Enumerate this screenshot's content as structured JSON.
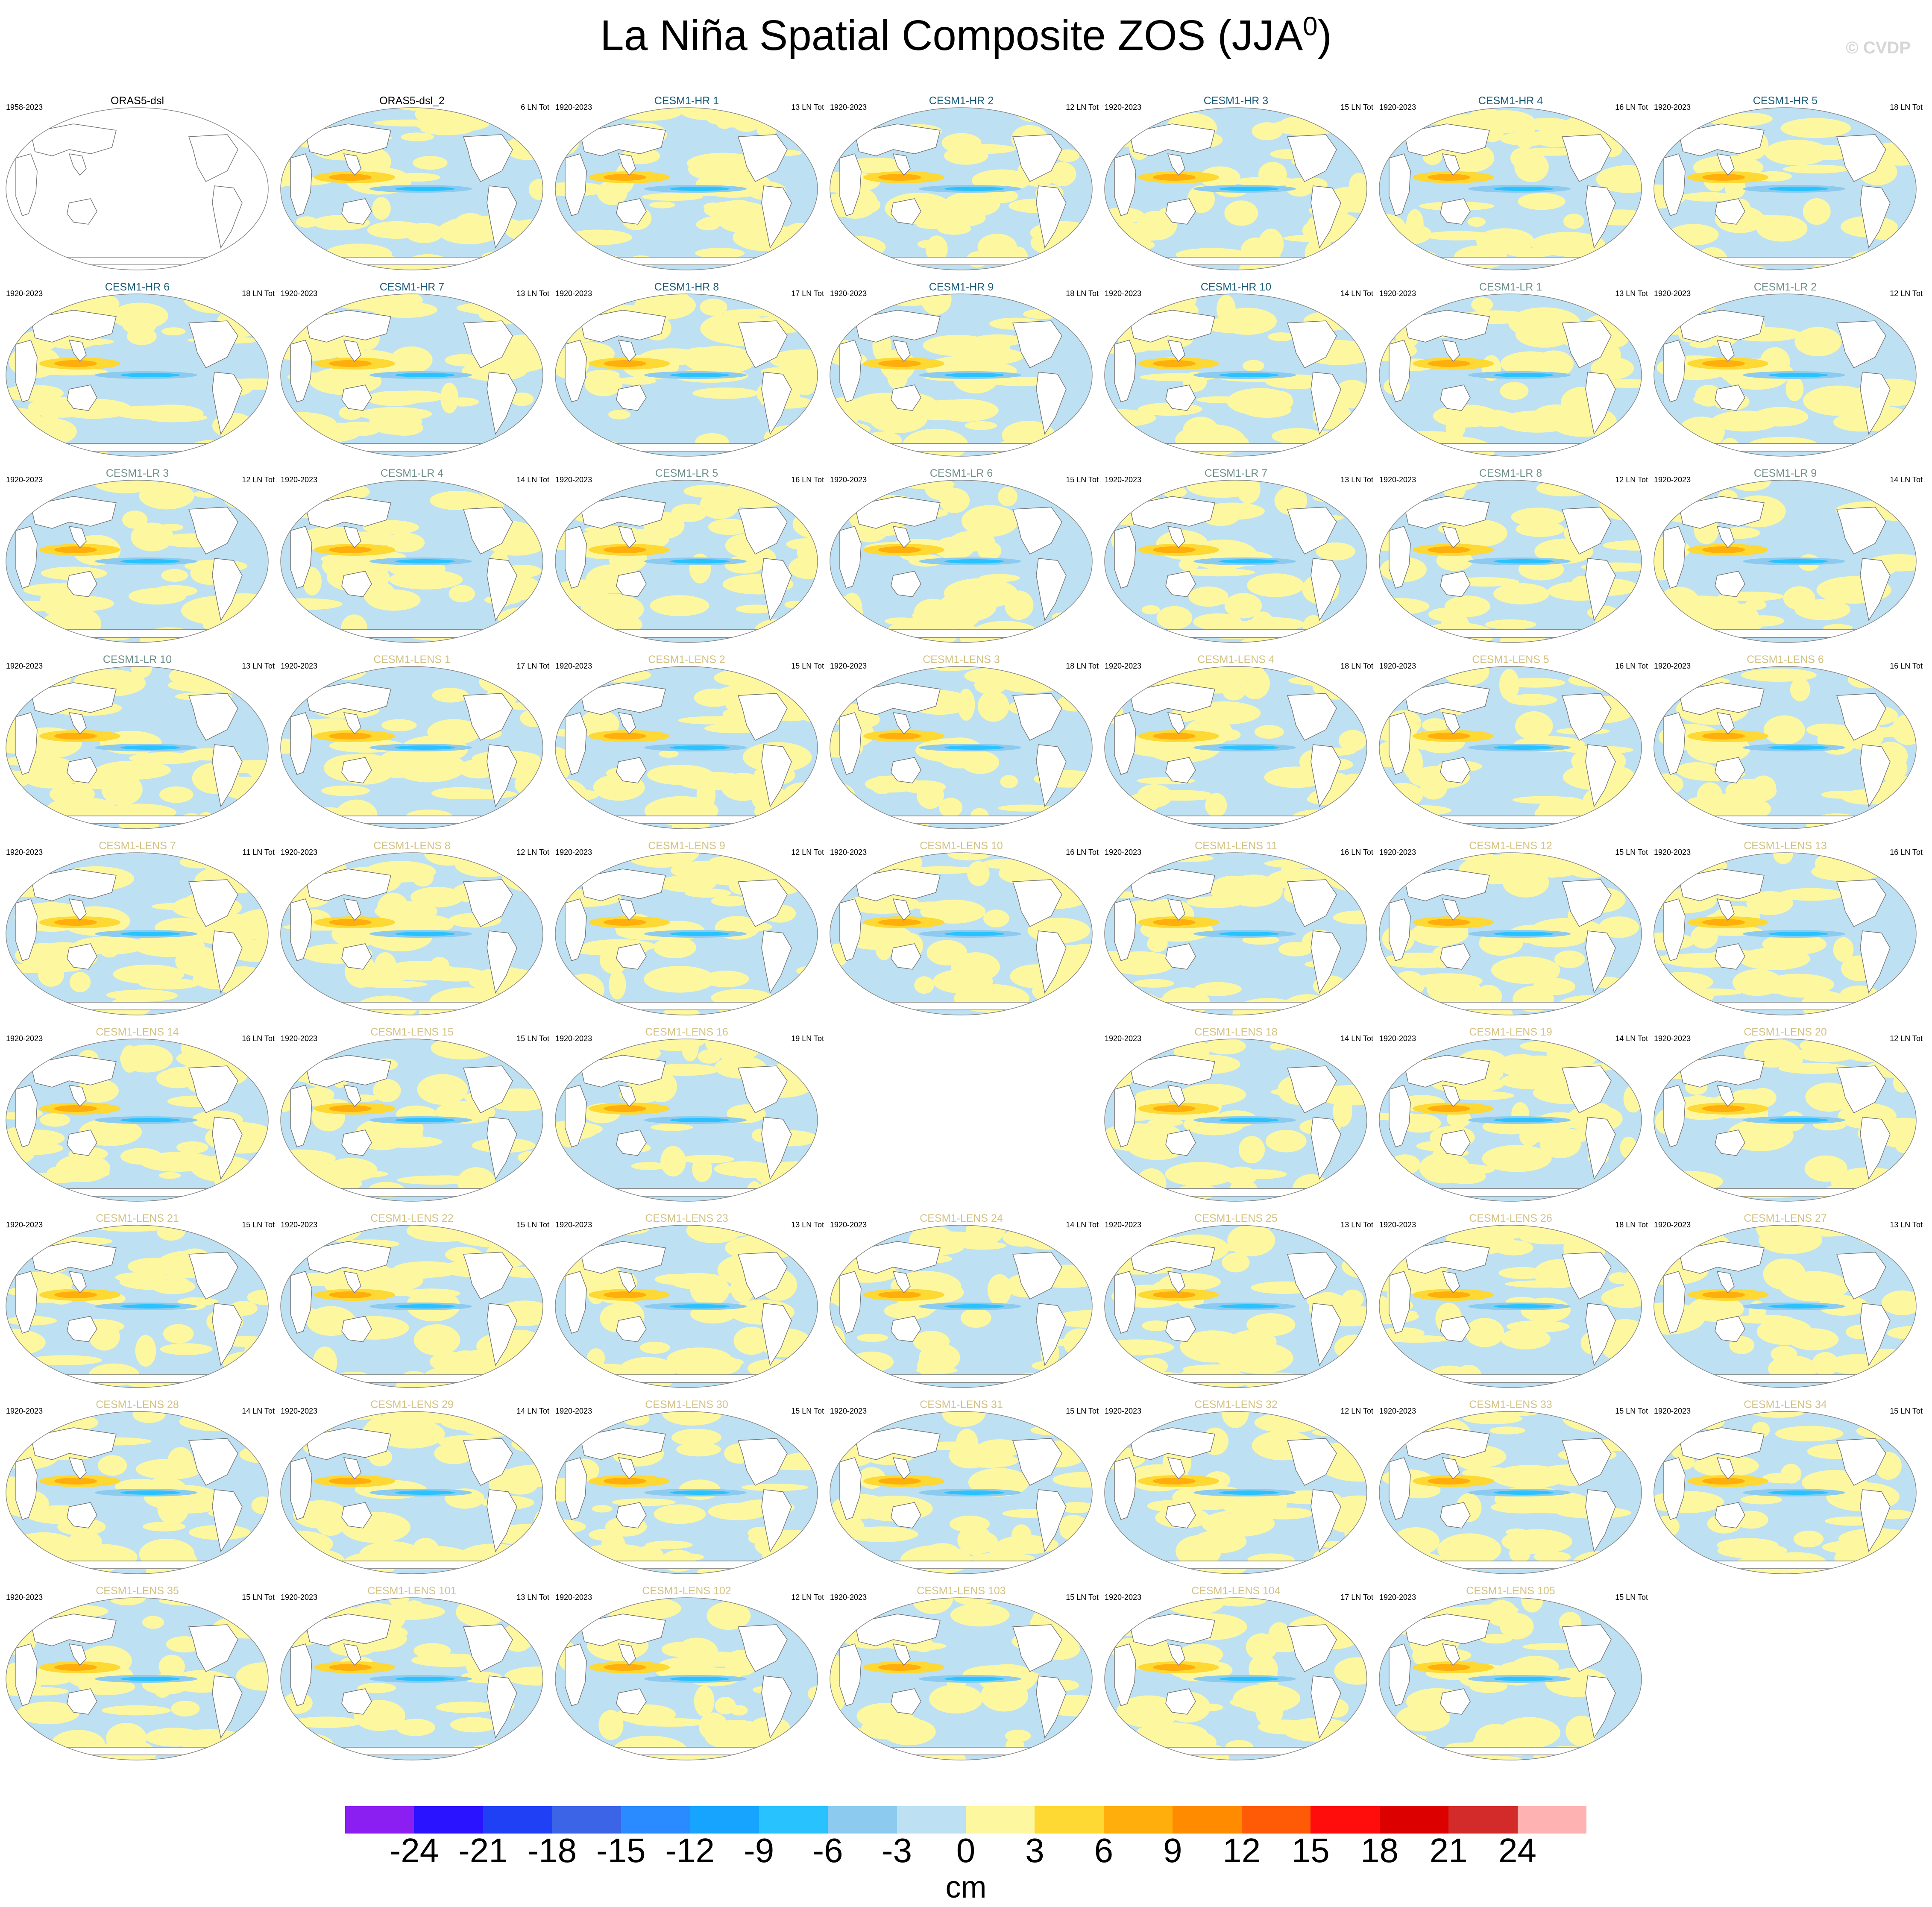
{
  "title": "La Niña Spatial Composite ZOS (JJA",
  "title_sup": "0",
  "title_close": ")",
  "watermark": "© CVDP",
  "colors": {
    "ocean_blue": "#bde0f3",
    "ocean_yellow": "#fdf7a0",
    "land": "#ffffff",
    "coast": "#777777",
    "name_obs": "#000000",
    "name_hr": "#1a5c7a",
    "name_lr": "#6f8f8a",
    "name_lens": "#d4c283"
  },
  "panels": [
    {
      "name": "ORAS5-dsl",
      "years": "1958-2023",
      "tot": "",
      "group": "obs",
      "blank": true
    },
    {
      "name": "ORAS5-dsl_2",
      "years": "",
      "tot": "6 LN Tot",
      "group": "obs"
    },
    {
      "name": "CESM1-HR 1",
      "years": "1920-2023",
      "tot": "13 LN Tot",
      "group": "hr"
    },
    {
      "name": "CESM1-HR 2",
      "years": "1920-2023",
      "tot": "12 LN Tot",
      "group": "hr"
    },
    {
      "name": "CESM1-HR 3",
      "years": "1920-2023",
      "tot": "15 LN Tot",
      "group": "hr"
    },
    {
      "name": "CESM1-HR 4",
      "years": "1920-2023",
      "tot": "16 LN Tot",
      "group": "hr"
    },
    {
      "name": "CESM1-HR 5",
      "years": "1920-2023",
      "tot": "18 LN Tot",
      "group": "hr"
    },
    {
      "name": "CESM1-HR 6",
      "years": "1920-2023",
      "tot": "18 LN Tot",
      "group": "hr"
    },
    {
      "name": "CESM1-HR 7",
      "years": "1920-2023",
      "tot": "13 LN Tot",
      "group": "hr"
    },
    {
      "name": "CESM1-HR 8",
      "years": "1920-2023",
      "tot": "17 LN Tot",
      "group": "hr"
    },
    {
      "name": "CESM1-HR 9",
      "years": "1920-2023",
      "tot": "18 LN Tot",
      "group": "hr"
    },
    {
      "name": "CESM1-HR 10",
      "years": "1920-2023",
      "tot": "14 LN Tot",
      "group": "hr"
    },
    {
      "name": "CESM1-LR 1",
      "years": "1920-2023",
      "tot": "13 LN Tot",
      "group": "lr"
    },
    {
      "name": "CESM1-LR 2",
      "years": "1920-2023",
      "tot": "12 LN Tot",
      "group": "lr"
    },
    {
      "name": "CESM1-LR 3",
      "years": "1920-2023",
      "tot": "12 LN Tot",
      "group": "lr"
    },
    {
      "name": "CESM1-LR 4",
      "years": "1920-2023",
      "tot": "14 LN Tot",
      "group": "lr"
    },
    {
      "name": "CESM1-LR 5",
      "years": "1920-2023",
      "tot": "16 LN Tot",
      "group": "lr"
    },
    {
      "name": "CESM1-LR 6",
      "years": "1920-2023",
      "tot": "15 LN Tot",
      "group": "lr"
    },
    {
      "name": "CESM1-LR 7",
      "years": "1920-2023",
      "tot": "13 LN Tot",
      "group": "lr"
    },
    {
      "name": "CESM1-LR 8",
      "years": "1920-2023",
      "tot": "12 LN Tot",
      "group": "lr"
    },
    {
      "name": "CESM1-LR 9",
      "years": "1920-2023",
      "tot": "14 LN Tot",
      "group": "lr"
    },
    {
      "name": "CESM1-LR 10",
      "years": "1920-2023",
      "tot": "13 LN Tot",
      "group": "lr"
    },
    {
      "name": "CESM1-LENS 1",
      "years": "1920-2023",
      "tot": "17 LN Tot",
      "group": "lens"
    },
    {
      "name": "CESM1-LENS 2",
      "years": "1920-2023",
      "tot": "15 LN Tot",
      "group": "lens"
    },
    {
      "name": "CESM1-LENS 3",
      "years": "1920-2023",
      "tot": "18 LN Tot",
      "group": "lens"
    },
    {
      "name": "CESM1-LENS 4",
      "years": "1920-2023",
      "tot": "18 LN Tot",
      "group": "lens"
    },
    {
      "name": "CESM1-LENS 5",
      "years": "1920-2023",
      "tot": "16 LN Tot",
      "group": "lens"
    },
    {
      "name": "CESM1-LENS 6",
      "years": "1920-2023",
      "tot": "16 LN Tot",
      "group": "lens"
    },
    {
      "name": "CESM1-LENS 7",
      "years": "1920-2023",
      "tot": "11 LN Tot",
      "group": "lens"
    },
    {
      "name": "CESM1-LENS 8",
      "years": "1920-2023",
      "tot": "12 LN Tot",
      "group": "lens"
    },
    {
      "name": "CESM1-LENS 9",
      "years": "1920-2023",
      "tot": "12 LN Tot",
      "group": "lens"
    },
    {
      "name": "CESM1-LENS 10",
      "years": "1920-2023",
      "tot": "16 LN Tot",
      "group": "lens"
    },
    {
      "name": "CESM1-LENS 11",
      "years": "1920-2023",
      "tot": "16 LN Tot",
      "group": "lens"
    },
    {
      "name": "CESM1-LENS 12",
      "years": "1920-2023",
      "tot": "15 LN Tot",
      "group": "lens"
    },
    {
      "name": "CESM1-LENS 13",
      "years": "1920-2023",
      "tot": "16 LN Tot",
      "group": "lens"
    },
    {
      "name": "CESM1-LENS 14",
      "years": "1920-2023",
      "tot": "16 LN Tot",
      "group": "lens"
    },
    {
      "name": "CESM1-LENS 15",
      "years": "1920-2023",
      "tot": "15 LN Tot",
      "group": "lens"
    },
    {
      "name": "CESM1-LENS 16",
      "years": "1920-2023",
      "tot": "19 LN Tot",
      "group": "lens"
    },
    {
      "name": "",
      "years": "",
      "tot": "",
      "group": "empty",
      "empty": true
    },
    {
      "name": "CESM1-LENS 18",
      "years": "1920-2023",
      "tot": "14 LN Tot",
      "group": "lens"
    },
    {
      "name": "CESM1-LENS 19",
      "years": "1920-2023",
      "tot": "14 LN Tot",
      "group": "lens"
    },
    {
      "name": "CESM1-LENS 20",
      "years": "1920-2023",
      "tot": "12 LN Tot",
      "group": "lens"
    },
    {
      "name": "CESM1-LENS 21",
      "years": "1920-2023",
      "tot": "15 LN Tot",
      "group": "lens"
    },
    {
      "name": "CESM1-LENS 22",
      "years": "1920-2023",
      "tot": "15 LN Tot",
      "group": "lens"
    },
    {
      "name": "CESM1-LENS 23",
      "years": "1920-2023",
      "tot": "13 LN Tot",
      "group": "lens"
    },
    {
      "name": "CESM1-LENS 24",
      "years": "1920-2023",
      "tot": "14 LN Tot",
      "group": "lens"
    },
    {
      "name": "CESM1-LENS 25",
      "years": "1920-2023",
      "tot": "13 LN Tot",
      "group": "lens"
    },
    {
      "name": "CESM1-LENS 26",
      "years": "1920-2023",
      "tot": "18 LN Tot",
      "group": "lens"
    },
    {
      "name": "CESM1-LENS 27",
      "years": "1920-2023",
      "tot": "13 LN Tot",
      "group": "lens"
    },
    {
      "name": "CESM1-LENS 28",
      "years": "1920-2023",
      "tot": "14 LN Tot",
      "group": "lens"
    },
    {
      "name": "CESM1-LENS 29",
      "years": "1920-2023",
      "tot": "14 LN Tot",
      "group": "lens"
    },
    {
      "name": "CESM1-LENS 30",
      "years": "1920-2023",
      "tot": "15 LN Tot",
      "group": "lens"
    },
    {
      "name": "CESM1-LENS 31",
      "years": "1920-2023",
      "tot": "15 LN Tot",
      "group": "lens"
    },
    {
      "name": "CESM1-LENS 32",
      "years": "1920-2023",
      "tot": "12 LN Tot",
      "group": "lens"
    },
    {
      "name": "CESM1-LENS 33",
      "years": "1920-2023",
      "tot": "15 LN Tot",
      "group": "lens"
    },
    {
      "name": "CESM1-LENS 34",
      "years": "1920-2023",
      "tot": "15 LN Tot",
      "group": "lens"
    },
    {
      "name": "CESM1-LENS 35",
      "years": "1920-2023",
      "tot": "15 LN Tot",
      "group": "lens"
    },
    {
      "name": "CESM1-LENS 101",
      "years": "1920-2023",
      "tot": "13 LN Tot",
      "group": "lens"
    },
    {
      "name": "CESM1-LENS 102",
      "years": "1920-2023",
      "tot": "12 LN Tot",
      "group": "lens"
    },
    {
      "name": "CESM1-LENS 103",
      "years": "1920-2023",
      "tot": "15 LN Tot",
      "group": "lens"
    },
    {
      "name": "CESM1-LENS 104",
      "years": "1920-2023",
      "tot": "17 LN Tot",
      "group": "lens"
    },
    {
      "name": "CESM1-LENS 105",
      "years": "1920-2023",
      "tot": "15 LN Tot",
      "group": "lens"
    }
  ],
  "colorbar": {
    "colors": [
      "#8b1ef0",
      "#2a13ff",
      "#2040f5",
      "#3c64e6",
      "#2a8aff",
      "#16a4ff",
      "#28c2ff",
      "#8ccbef",
      "#bde0f3",
      "#fdf7a0",
      "#fed833",
      "#ffae0c",
      "#ff8c00",
      "#ff5a05",
      "#ff0d0d",
      "#dd0000",
      "#d32a2a",
      "#ffb2b2"
    ],
    "labels": [
      "-24",
      "-21",
      "-18",
      "-15",
      "-12",
      "-9",
      "-6",
      "-3",
      "0",
      "3",
      "6",
      "9",
      "12",
      "15",
      "18",
      "21",
      "24"
    ],
    "unit": "cm"
  }
}
